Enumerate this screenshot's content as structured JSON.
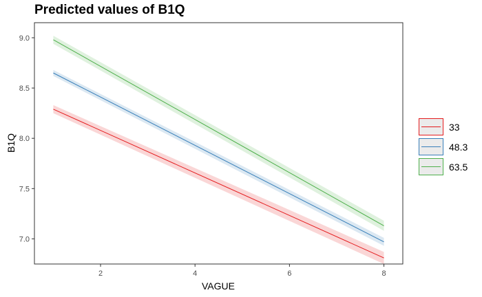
{
  "chart_data": {
    "type": "line",
    "title": "Predicted values of B1Q",
    "xlabel": "VAGUE",
    "ylabel": "B1Q",
    "xlim": [
      0.6,
      8.4
    ],
    "ylim": [
      6.75,
      9.15
    ],
    "xticks": [
      2,
      4,
      6,
      8
    ],
    "yticks": [
      7.0,
      7.5,
      8.0,
      8.5,
      9.0
    ],
    "ytick_labels": [
      "7.0",
      "7.5",
      "8.0",
      "8.5",
      "9.0"
    ],
    "grid": false,
    "legend_position": "right",
    "series": [
      {
        "name": "33",
        "color": "#e41a1c",
        "x": [
          1,
          8
        ],
        "y": [
          8.29,
          6.81
        ],
        "ci_halfwidth": [
          0.04,
          0.06
        ]
      },
      {
        "name": "48.3",
        "color": "#377eb8",
        "x": [
          1,
          8
        ],
        "y": [
          8.65,
          6.97
        ],
        "ci_halfwidth": [
          0.03,
          0.04
        ]
      },
      {
        "name": "63.5",
        "color": "#4daf4a",
        "x": [
          1,
          8
        ],
        "y": [
          8.98,
          7.13
        ],
        "ci_halfwidth": [
          0.04,
          0.05
        ]
      }
    ]
  }
}
